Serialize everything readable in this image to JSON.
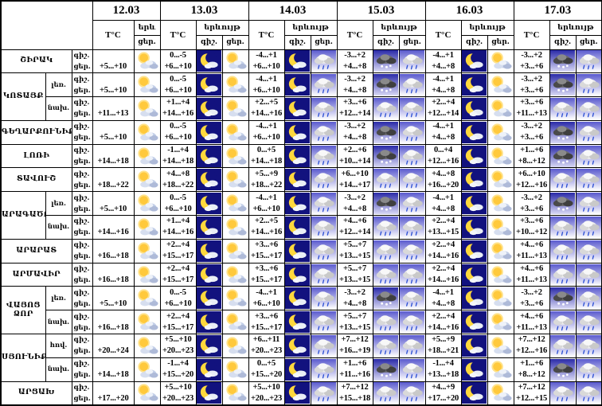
{
  "table": {
    "corner": "",
    "dates": [
      "12.03",
      "13.03",
      "14.03",
      "15.03",
      "16.03",
      "17.03"
    ],
    "temp_header": "T°C",
    "phenomenon_header": "երևույթ",
    "phenomenon_header_short": "երև",
    "night_abbr": "գիշ.",
    "day_abbr": "ցեր.",
    "icon_glyphs": {
      "partly-sunny": "⛅",
      "moon-cloud": "☾",
      "rain": "🌧",
      "sleet": "🌨"
    },
    "colors": {
      "border": "#000000",
      "moon_bg": "#12127e",
      "sun": "#ffc93c",
      "rain_bg_top": "#5a5ace",
      "sleet_bg_top": "#2a2aa8",
      "rain_drop": "#2b4fd4"
    },
    "rows": [
      {
        "region": "ՇԻՐԱԿ",
        "sub": null,
        "region_rowspan": 1,
        "days": [
          {
            "night": "",
            "day": "+5...+10",
            "icons": [
              "partly-sunny"
            ]
          },
          {
            "night": "0...-5",
            "day": "+6...+10",
            "icons": [
              "moon-cloud",
              "partly-sunny"
            ]
          },
          {
            "night": "-4...+1",
            "day": "+6...+10",
            "icons": [
              "moon-cloud",
              "rain"
            ]
          },
          {
            "night": "-3...+2",
            "day": "+4...+8",
            "icons": [
              "sleet",
              "rain"
            ]
          },
          {
            "night": "-4...+1",
            "day": "+4...+8",
            "icons": [
              "moon-cloud",
              "partly-sunny"
            ]
          },
          {
            "night": "-3...+2",
            "day": "+3...+6",
            "icons": [
              "sleet",
              "rain"
            ]
          }
        ]
      },
      {
        "region": "ԿՈՏԱՅՔ",
        "sub": "լեռ.",
        "region_rowspan": 2,
        "days": [
          {
            "night": "",
            "day": "+5...+10",
            "icons": [
              "partly-sunny"
            ]
          },
          {
            "night": "0...-5",
            "day": "+6...+10",
            "icons": [
              "moon-cloud",
              "partly-sunny"
            ]
          },
          {
            "night": "-4...+1",
            "day": "+6...+10",
            "icons": [
              "moon-cloud",
              "rain"
            ]
          },
          {
            "night": "-3...+2",
            "day": "+4...+8",
            "icons": [
              "sleet",
              "rain"
            ]
          },
          {
            "night": "-4...+1",
            "day": "+4...+8",
            "icons": [
              "moon-cloud",
              "partly-sunny"
            ]
          },
          {
            "night": "-3...+2",
            "day": "+3...+6",
            "icons": [
              "sleet",
              "rain"
            ]
          }
        ]
      },
      {
        "region": null,
        "sub": "նախ.",
        "days": [
          {
            "night": "",
            "day": "+11...+13",
            "icons": [
              "partly-sunny"
            ]
          },
          {
            "night": "+1...+4",
            "day": "+14...+16",
            "icons": [
              "moon-cloud",
              "partly-sunny"
            ]
          },
          {
            "night": "+2...+5",
            "day": "+14...+16",
            "icons": [
              "moon-cloud",
              "rain"
            ]
          },
          {
            "night": "+3...+6",
            "day": "+12...+14",
            "icons": [
              "rain",
              "rain"
            ]
          },
          {
            "night": "+2...+4",
            "day": "+12...+14",
            "icons": [
              "moon-cloud",
              "partly-sunny"
            ]
          },
          {
            "night": "+3...+6",
            "day": "+11...+13",
            "icons": [
              "rain",
              "rain"
            ]
          }
        ]
      },
      {
        "region": "ԳԵՂԱՐՔՈՒՆԻՔ",
        "sub": null,
        "region_rowspan": 1,
        "days": [
          {
            "night": "",
            "day": "+5...+10",
            "icons": [
              "partly-sunny"
            ]
          },
          {
            "night": "0...-5",
            "day": "+6...+10",
            "icons": [
              "moon-cloud",
              "partly-sunny"
            ]
          },
          {
            "night": "-4...+1",
            "day": "+6...+10",
            "icons": [
              "moon-cloud",
              "rain"
            ]
          },
          {
            "night": "-3...+2",
            "day": "+4...+8",
            "icons": [
              "sleet",
              "rain"
            ]
          },
          {
            "night": "-4...+1",
            "day": "+4...+8",
            "icons": [
              "moon-cloud",
              "partly-sunny"
            ]
          },
          {
            "night": "-3...+2",
            "day": "+3...+6",
            "icons": [
              "sleet",
              "rain"
            ]
          }
        ]
      },
      {
        "region": "ԼՈՌԻ",
        "sub": null,
        "region_rowspan": 1,
        "days": [
          {
            "night": "",
            "day": "+14...+18",
            "icons": [
              "partly-sunny"
            ]
          },
          {
            "night": "-1...+4",
            "day": "+14...+18",
            "icons": [
              "moon-cloud",
              "partly-sunny"
            ]
          },
          {
            "night": "0...+5",
            "day": "+14...+18",
            "icons": [
              "moon-cloud",
              "rain"
            ]
          },
          {
            "night": "+2...+6",
            "day": "+10...+14",
            "icons": [
              "sleet",
              "rain"
            ]
          },
          {
            "night": "0...+4",
            "day": "+12...+16",
            "icons": [
              "moon-cloud",
              "partly-sunny"
            ]
          },
          {
            "night": "+1...+6",
            "day": "+8...+12",
            "icons": [
              "sleet",
              "rain"
            ]
          }
        ]
      },
      {
        "region": "ՏԱՎՈՒՇ",
        "sub": null,
        "region_rowspan": 1,
        "days": [
          {
            "night": "",
            "day": "+18...+22",
            "icons": [
              "partly-sunny"
            ]
          },
          {
            "night": "+4...+8",
            "day": "+18...+22",
            "icons": [
              "moon-cloud",
              "partly-sunny"
            ]
          },
          {
            "night": "+5...+9",
            "day": "+18...+22",
            "icons": [
              "moon-cloud",
              "rain"
            ]
          },
          {
            "night": "+6...+10",
            "day": "+14...+17",
            "icons": [
              "rain",
              "rain"
            ]
          },
          {
            "night": "+4...+8",
            "day": "+16...+20",
            "icons": [
              "moon-cloud",
              "partly-sunny"
            ]
          },
          {
            "night": "+6...+10",
            "day": "+12...+16",
            "icons": [
              "rain",
              "rain"
            ]
          }
        ]
      },
      {
        "region": "ԱՐԱԳԱԾՈՏՆ",
        "sub": "լեռ.",
        "region_rowspan": 2,
        "days": [
          {
            "night": "",
            "day": "+5...+10",
            "icons": [
              "partly-sunny"
            ]
          },
          {
            "night": "0...-5",
            "day": "+6...+10",
            "icons": [
              "moon-cloud",
              "partly-sunny"
            ]
          },
          {
            "night": "-4...+1",
            "day": "+6...+10",
            "icons": [
              "moon-cloud",
              "rain"
            ]
          },
          {
            "night": "-3...+2",
            "day": "+4...+8",
            "icons": [
              "sleet",
              "rain"
            ]
          },
          {
            "night": "-4...+1",
            "day": "+4...+8",
            "icons": [
              "moon-cloud",
              "partly-sunny"
            ]
          },
          {
            "night": "-3...+2",
            "day": "+3...+6",
            "icons": [
              "sleet",
              "rain"
            ]
          }
        ]
      },
      {
        "region": null,
        "sub": "նախ.",
        "days": [
          {
            "night": "",
            "day": "+14...+16",
            "icons": [
              "partly-sunny"
            ]
          },
          {
            "night": "+1...+4",
            "day": "+14...+16",
            "icons": [
              "moon-cloud",
              "partly-sunny"
            ]
          },
          {
            "night": "+2...+5",
            "day": "+14...+16",
            "icons": [
              "moon-cloud",
              "rain"
            ]
          },
          {
            "night": "+4...+6",
            "day": "+12...+14",
            "icons": [
              "rain",
              "rain"
            ]
          },
          {
            "night": "+2...+4",
            "day": "+13...+15",
            "icons": [
              "moon-cloud",
              "partly-sunny"
            ]
          },
          {
            "night": "+3...+6",
            "day": "+10...+12",
            "icons": [
              "rain",
              "rain"
            ]
          }
        ]
      },
      {
        "region": "ԱՐԱՐԱՏ",
        "sub": null,
        "region_rowspan": 1,
        "days": [
          {
            "night": "",
            "day": "+16...+18",
            "icons": [
              "partly-sunny"
            ]
          },
          {
            "night": "+2...+4",
            "day": "+15...+17",
            "icons": [
              "moon-cloud",
              "partly-sunny"
            ]
          },
          {
            "night": "+3...+6",
            "day": "+15...+17",
            "icons": [
              "moon-cloud",
              "rain"
            ]
          },
          {
            "night": "+5...+7",
            "day": "+13...+15",
            "icons": [
              "rain",
              "rain"
            ]
          },
          {
            "night": "+2...+4",
            "day": "+14...+16",
            "icons": [
              "moon-cloud",
              "partly-sunny"
            ]
          },
          {
            "night": "+4...+6",
            "day": "+11...+13",
            "icons": [
              "rain",
              "rain"
            ]
          }
        ]
      },
      {
        "region": "ԱՐՄԱՎԻՐ",
        "sub": null,
        "region_rowspan": 1,
        "days": [
          {
            "night": "",
            "day": "+16...+18",
            "icons": [
              "partly-sunny"
            ]
          },
          {
            "night": "+2...+4",
            "day": "+15...+17",
            "icons": [
              "moon-cloud",
              "partly-sunny"
            ]
          },
          {
            "night": "+3...+6",
            "day": "+15...+17",
            "icons": [
              "moon-cloud",
              "rain"
            ]
          },
          {
            "night": "+5...+7",
            "day": "+13...+15",
            "icons": [
              "rain",
              "rain"
            ]
          },
          {
            "night": "+2...+4",
            "day": "+14...+16",
            "icons": [
              "moon-cloud",
              "partly-sunny"
            ]
          },
          {
            "night": "+4...+6",
            "day": "+11...+13",
            "icons": [
              "rain",
              "rain"
            ]
          }
        ]
      },
      {
        "region": "ՎԱՅՈՑ ՁՈՐ",
        "sub": "լեռ.",
        "region_rowspan": 2,
        "days": [
          {
            "night": "",
            "day": "+5...+10",
            "icons": [
              "partly-sunny"
            ]
          },
          {
            "night": "0...-5",
            "day": "+6...+10",
            "icons": [
              "moon-cloud",
              "partly-sunny"
            ]
          },
          {
            "night": "-4...+1",
            "day": "+6...+10",
            "icons": [
              "moon-cloud",
              "rain"
            ]
          },
          {
            "night": "-3...+2",
            "day": "+4...+8",
            "icons": [
              "sleet",
              "rain"
            ]
          },
          {
            "night": "-4...+1",
            "day": "+4...+8",
            "icons": [
              "moon-cloud",
              "partly-sunny"
            ]
          },
          {
            "night": "-3...+2",
            "day": "+3...+6",
            "icons": [
              "sleet",
              "rain"
            ]
          }
        ]
      },
      {
        "region": null,
        "sub": "նախ.",
        "days": [
          {
            "night": "",
            "day": "+16...+18",
            "icons": [
              "partly-sunny"
            ]
          },
          {
            "night": "+2...+4",
            "day": "+15...+17",
            "icons": [
              "moon-cloud",
              "partly-sunny"
            ]
          },
          {
            "night": "+3...+6",
            "day": "+15...+17",
            "icons": [
              "moon-cloud",
              "rain"
            ]
          },
          {
            "night": "+5...+7",
            "day": "+13...+15",
            "icons": [
              "rain",
              "rain"
            ]
          },
          {
            "night": "+2...+4",
            "day": "+14...+16",
            "icons": [
              "moon-cloud",
              "partly-sunny"
            ]
          },
          {
            "night": "+4...+6",
            "day": "+11...+13",
            "icons": [
              "rain",
              "rain"
            ]
          }
        ]
      },
      {
        "region": "ՍՅՈՒՆԻՔ",
        "sub": "հով.",
        "region_rowspan": 2,
        "days": [
          {
            "night": "",
            "day": "+20...+24",
            "icons": [
              "partly-sunny"
            ]
          },
          {
            "night": "+5...+10",
            "day": "+20...+23",
            "icons": [
              "moon-cloud",
              "partly-sunny"
            ]
          },
          {
            "night": "+6...+11",
            "day": "+20...+23",
            "icons": [
              "moon-cloud",
              "rain"
            ]
          },
          {
            "night": "+7...+12",
            "day": "+16...+19",
            "icons": [
              "rain",
              "rain"
            ]
          },
          {
            "night": "+5...+9",
            "day": "+18...+21",
            "icons": [
              "moon-cloud",
              "partly-sunny"
            ]
          },
          {
            "night": "+7...+12",
            "day": "+12...+16",
            "icons": [
              "rain",
              "rain"
            ]
          }
        ]
      },
      {
        "region": null,
        "sub": "նախ.",
        "days": [
          {
            "night": "",
            "day": "+14...+18",
            "icons": [
              "partly-sunny"
            ]
          },
          {
            "night": "-1...+4",
            "day": "+15...+20",
            "icons": [
              "moon-cloud",
              "partly-sunny"
            ]
          },
          {
            "night": "0...+5",
            "day": "+15...+20",
            "icons": [
              "moon-cloud",
              "rain"
            ]
          },
          {
            "night": "+1...+6",
            "day": "+11...+16",
            "icons": [
              "sleet",
              "rain"
            ]
          },
          {
            "night": "-1...+4",
            "day": "+13...+18",
            "icons": [
              "moon-cloud",
              "partly-sunny"
            ]
          },
          {
            "night": "+1...+6",
            "day": "+8...+12",
            "icons": [
              "sleet",
              "rain"
            ]
          }
        ]
      },
      {
        "region": "ԱՐՑԱԽ",
        "sub": null,
        "region_rowspan": 1,
        "days": [
          {
            "night": "",
            "day": "+17...+20",
            "icons": [
              "partly-sunny"
            ]
          },
          {
            "night": "+5...+10",
            "day": "+20...+23",
            "icons": [
              "moon-cloud",
              "partly-sunny"
            ]
          },
          {
            "night": "+5...+10",
            "day": "+20...+23",
            "icons": [
              "moon-cloud",
              "rain"
            ]
          },
          {
            "night": "+7...+12",
            "day": "+15...+18",
            "icons": [
              "rain",
              "rain"
            ]
          },
          {
            "night": "+4...+9",
            "day": "+17...+20",
            "icons": [
              "moon-cloud",
              "partly-sunny"
            ]
          },
          {
            "night": "+7...+12",
            "day": "+12...+15",
            "icons": [
              "rain",
              "rain"
            ]
          }
        ]
      }
    ]
  }
}
